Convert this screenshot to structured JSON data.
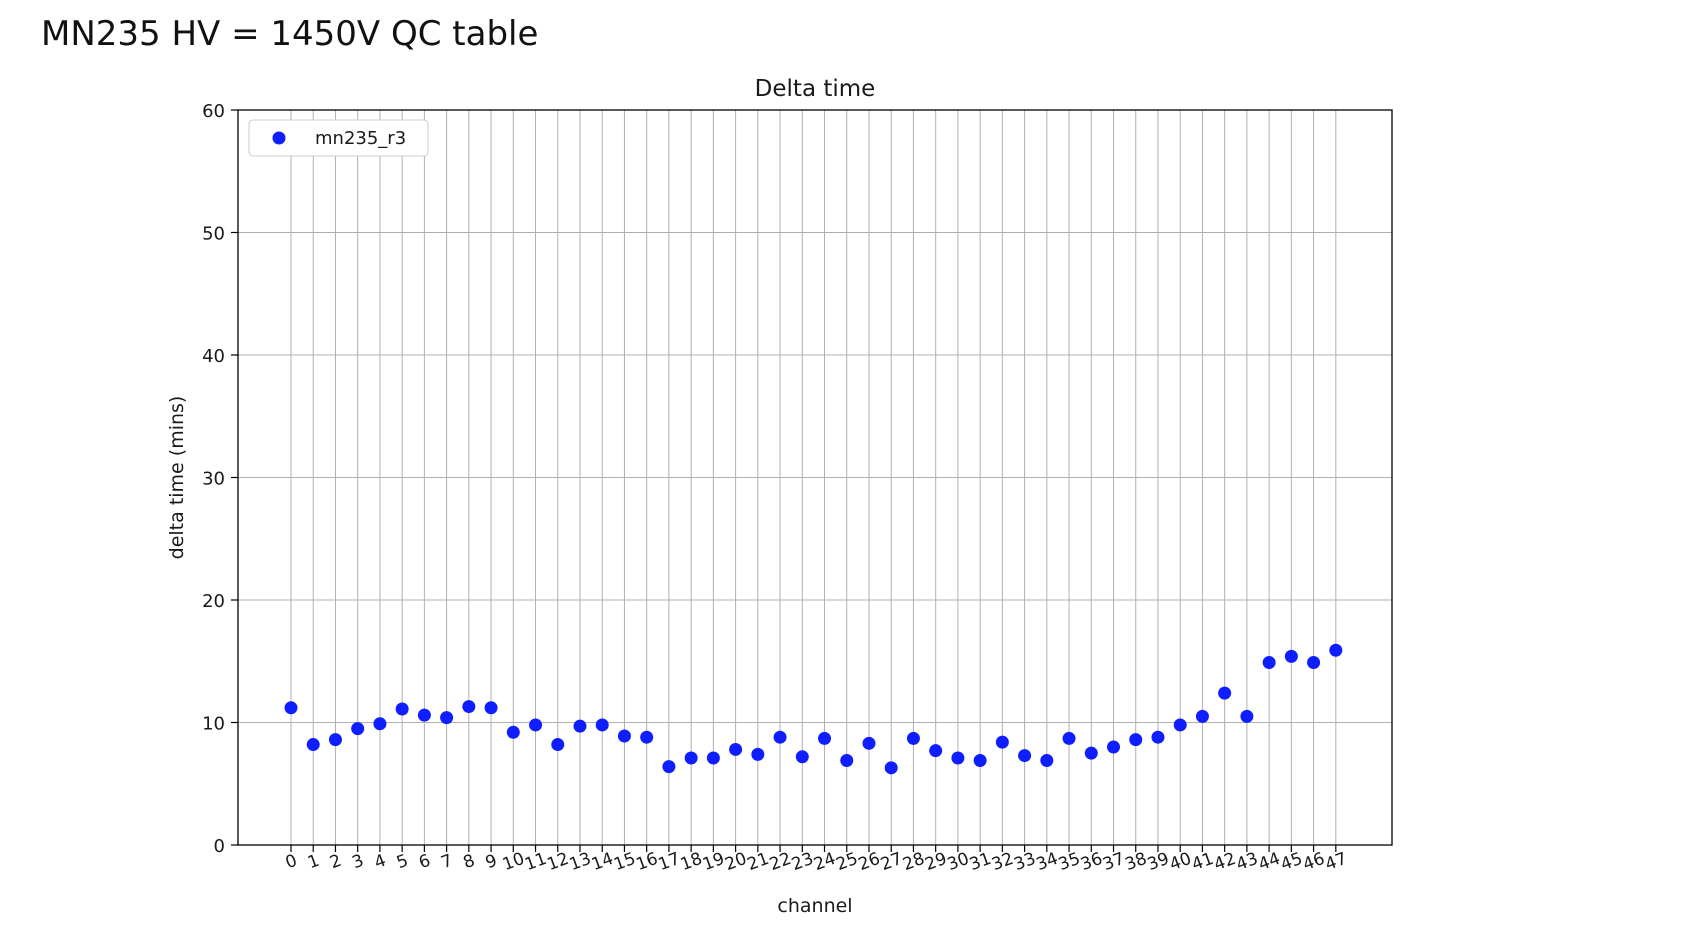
{
  "page": {
    "title": "MN235 HV = 1450V QC table"
  },
  "chart_data": {
    "type": "scatter",
    "title": "Delta time",
    "xlabel": "channel",
    "ylabel": "delta time (mins)",
    "ylim": [
      0,
      60
    ],
    "yticks": [
      0,
      10,
      20,
      30,
      40,
      50,
      60
    ],
    "grid": true,
    "legend_position": "top-left",
    "series": [
      {
        "name": "mn235_r3",
        "color": "#0f1eff",
        "x": [
          0,
          1,
          2,
          3,
          4,
          5,
          6,
          7,
          8,
          9,
          10,
          11,
          12,
          13,
          14,
          15,
          16,
          17,
          18,
          19,
          20,
          21,
          22,
          23,
          24,
          25,
          26,
          27,
          28,
          29,
          30,
          31,
          32,
          33,
          34,
          35,
          36,
          37,
          38,
          39,
          40,
          41,
          42,
          43,
          44,
          45,
          46,
          47
        ],
        "y": [
          11.2,
          8.2,
          8.6,
          9.5,
          9.9,
          11.1,
          10.6,
          10.4,
          11.3,
          11.2,
          9.2,
          9.8,
          8.2,
          9.7,
          9.8,
          8.9,
          8.8,
          6.4,
          7.1,
          7.1,
          7.8,
          7.4,
          8.8,
          7.2,
          8.7,
          6.9,
          8.3,
          6.3,
          8.7,
          7.7,
          7.1,
          6.9,
          8.4,
          7.3,
          6.9,
          8.7,
          7.5,
          8.0,
          8.6,
          8.8,
          9.8,
          10.5,
          12.4,
          10.5,
          14.9,
          15.4,
          14.9,
          15.9
        ]
      }
    ]
  }
}
